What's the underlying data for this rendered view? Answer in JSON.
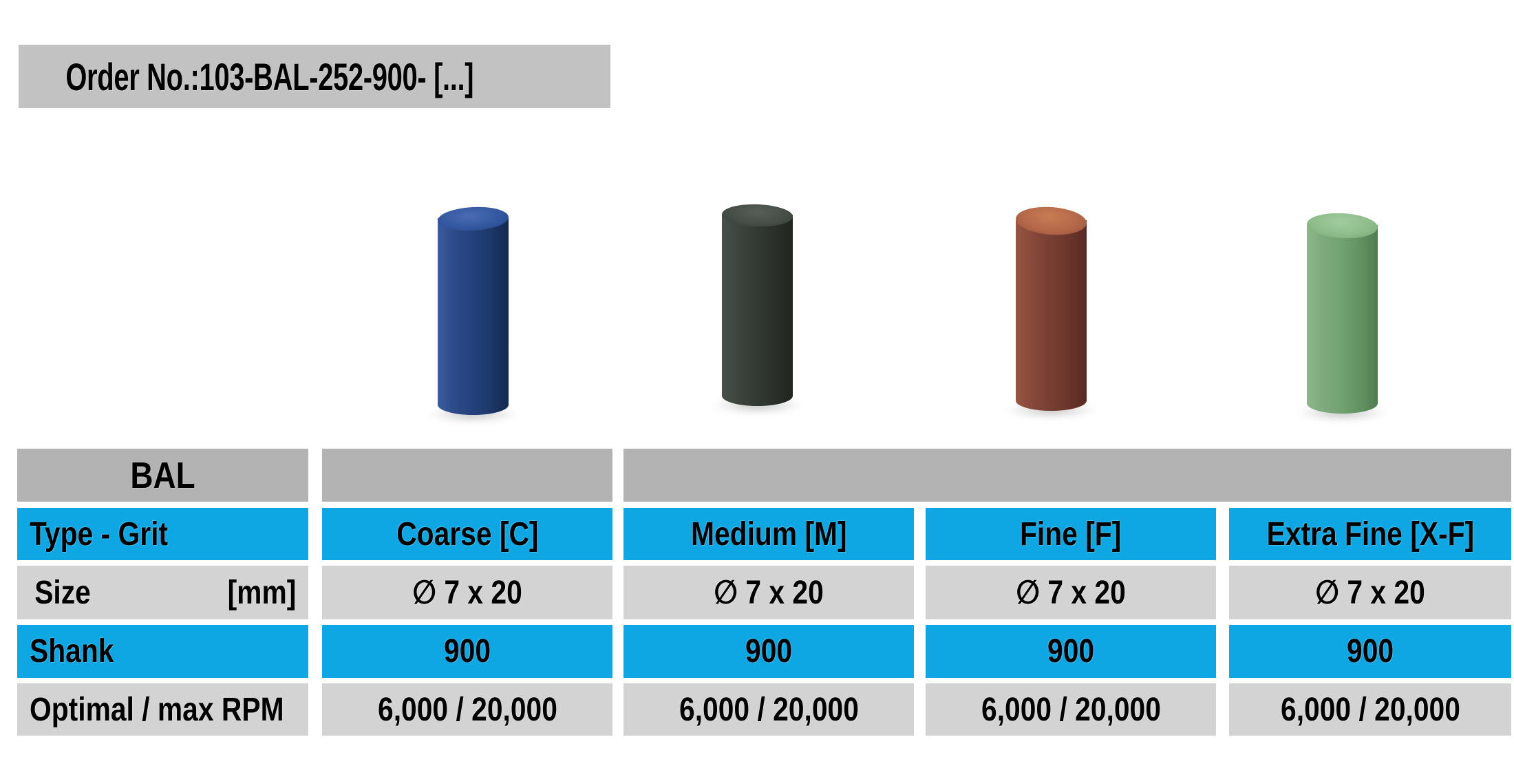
{
  "order_bar": {
    "text": "Order No.:103-BAL-252-900- [...]",
    "background": "#C2C2C2"
  },
  "products": [
    {
      "name": "coarse-blue-cylinder",
      "color_name": "blue",
      "body_color": "#24417c",
      "top_color": "#32569f"
    },
    {
      "name": "medium-black-cylinder",
      "color_name": "dark-green",
      "body_color": "#30372f",
      "top_color": "#454d47"
    },
    {
      "name": "fine-red-cylinder",
      "color_name": "brick-red",
      "body_color": "#753c30",
      "top_color": "#b4684a"
    },
    {
      "name": "extra-fine-green-cylinder",
      "color_name": "green",
      "body_color": "#70a070",
      "top_color": "#8dbc8a"
    }
  ],
  "table": {
    "header": {
      "brand": "BAL"
    },
    "rows": [
      {
        "label": "Type - Grit",
        "values": [
          "Coarse [C]",
          "Medium [M]",
          "Fine [F]",
          "Extra Fine [X-F]"
        ]
      },
      {
        "label": "Size",
        "unit": "[mm]",
        "values": [
          "∅ 7 x 20",
          "∅ 7 x 20",
          "∅ 7 x 20",
          "∅ 7 x 20"
        ]
      },
      {
        "label": "Shank",
        "values": [
          "900",
          "900",
          "900",
          "900"
        ]
      },
      {
        "label": "Optimal / max RPM",
        "values": [
          "6,000 / 20,000",
          "6,000 / 20,000",
          "6,000 / 20,000",
          "6,000 / 20,000"
        ]
      }
    ],
    "colors": {
      "highlight_blue": "#0FA7E3",
      "row_gray": "#D3D3D3",
      "header_gray": "#B3B3B3"
    }
  }
}
